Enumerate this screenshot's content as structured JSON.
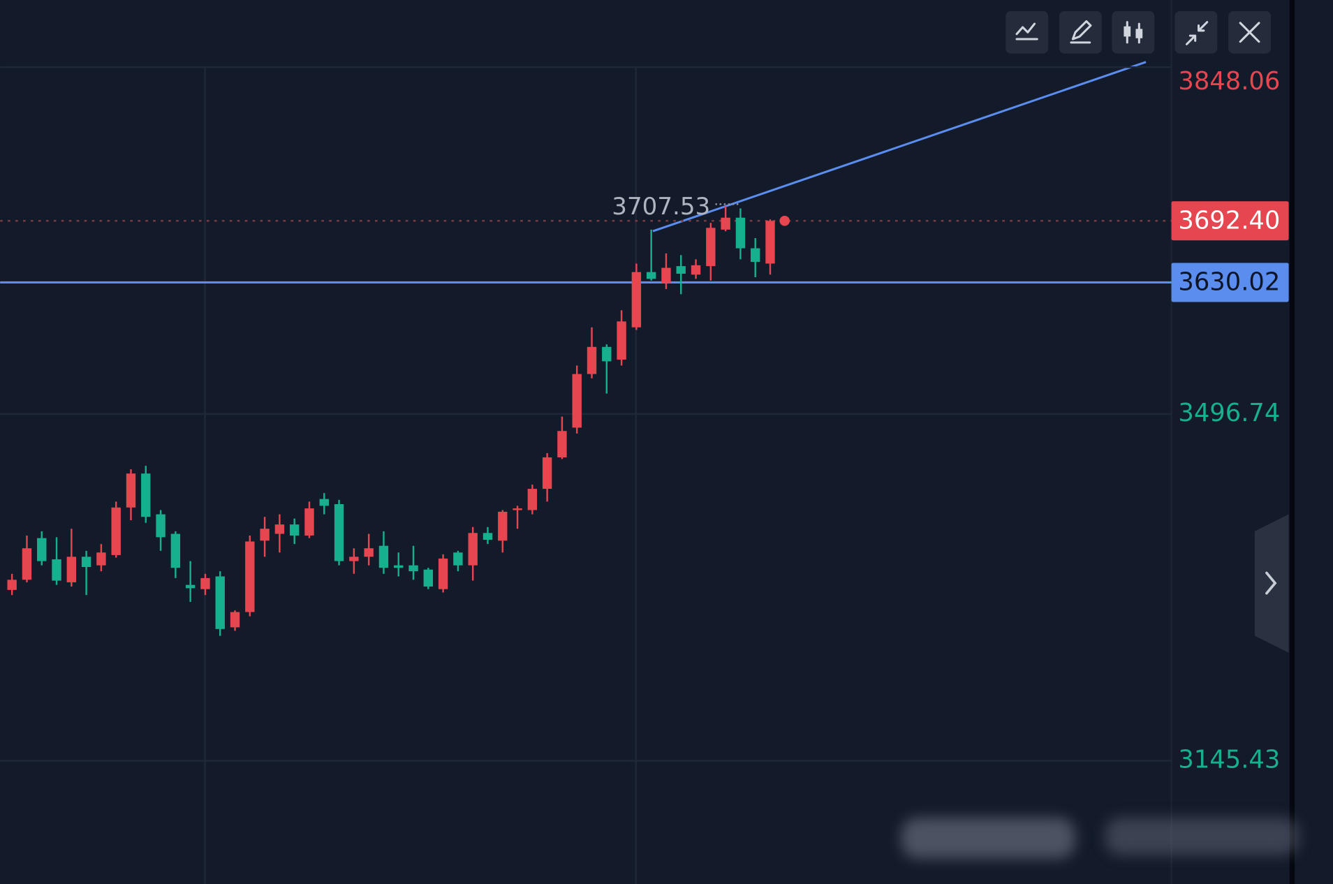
{
  "chart_data": {
    "type": "candlestick",
    "categories": [
      null,
      null,
      null,
      null,
      null,
      null,
      null,
      null,
      null,
      null,
      null,
      null,
      null,
      null,
      null,
      null,
      null,
      null,
      null,
      null,
      null,
      null,
      null,
      null,
      null,
      null,
      null,
      null,
      null,
      null,
      null,
      null,
      null,
      null,
      null,
      null,
      null,
      null,
      null,
      null,
      null,
      null,
      null,
      null,
      null,
      null,
      null,
      null,
      null,
      null,
      null,
      null
    ],
    "open": [
      3318.5,
      3328.8,
      3371.0,
      3349.5,
      3326.2,
      3352.1,
      3343.4,
      3353.8,
      3402.0,
      3436.4,
      3395.1,
      3375.3,
      3323.6,
      3319.3,
      3332.2,
      3280.6,
      3296.1,
      3368.4,
      3375.3,
      3384.8,
      3373.6,
      3410.6,
      3405.4,
      3347.7,
      3352.1,
      3363.2,
      3343.4,
      3343.4,
      3339.1,
      3319.3,
      3356.4,
      3343.4,
      3376.2,
      3368.4,
      3399.4,
      3399.4,
      3420.9,
      3452.8,
      3482.9,
      3537.2,
      3564.7,
      3551.8,
      3584.5,
      3640.5,
      3629.3,
      3646.5,
      3637.9,
      3646.5,
      3683.5,
      3695.6,
      3664.6,
      3649.1
    ],
    "high": [
      3334.8,
      3373.6,
      3377.9,
      3371.9,
      3380.5,
      3358.1,
      3365.0,
      3408.0,
      3440.7,
      3444.2,
      3399.4,
      3377.9,
      3347.7,
      3334.8,
      3337.4,
      3297.8,
      3373.6,
      3392.5,
      3395.1,
      3390.8,
      3408.0,
      3416.6,
      3409.7,
      3360.7,
      3375.3,
      3377.9,
      3356.4,
      3363.2,
      3340.9,
      3354.6,
      3358.1,
      3382.2,
      3382.2,
      3399.4,
      3403.7,
      3425.2,
      3457.1,
      3494.1,
      3545.8,
      3584.5,
      3567.3,
      3601.8,
      3649.1,
      3683.5,
      3659.4,
      3657.7,
      3653.4,
      3690.4,
      3707.53,
      3705.0,
      3674.9,
      3693.9
    ],
    "low": [
      3313.3,
      3326.2,
      3343.4,
      3323.6,
      3321.9,
      3313.3,
      3337.4,
      3351.2,
      3389.1,
      3386.5,
      3358.1,
      3330.5,
      3306.4,
      3313.3,
      3272.0,
      3277.1,
      3291.8,
      3352.1,
      3356.4,
      3365.0,
      3371.0,
      3395.1,
      3343.4,
      3334.8,
      3343.4,
      3334.8,
      3332.2,
      3328.8,
      3319.3,
      3315.9,
      3337.4,
      3327.9,
      3365.0,
      3356.4,
      3380.5,
      3395.1,
      3408.0,
      3451.1,
      3476.9,
      3532.9,
      3517.4,
      3545.8,
      3581.9,
      3631.9,
      3623.3,
      3618.1,
      3633.6,
      3631.9,
      3681.8,
      3653.4,
      3635.3,
      3637.9
    ],
    "close": [
      3328.8,
      3360.7,
      3347.7,
      3327.9,
      3352.1,
      3341.7,
      3356.4,
      3402.0,
      3436.4,
      3392.5,
      3371.9,
      3340.9,
      3320.2,
      3330.5,
      3278.9,
      3296.1,
      3367.6,
      3380.5,
      3384.8,
      3373.6,
      3401.1,
      3403.7,
      3347.7,
      3352.1,
      3360.7,
      3340.9,
      3340.9,
      3337.4,
      3321.9,
      3350.3,
      3343.4,
      3376.2,
      3369.3,
      3397.7,
      3401.1,
      3420.9,
      3452.8,
      3479.5,
      3537.2,
      3564.7,
      3550.1,
      3590.5,
      3640.5,
      3633.6,
      3644.8,
      3638.8,
      3647.4,
      3685.3,
      3695.6,
      3664.6,
      3650.8,
      3692.4
    ],
    "up_color": "#e5464f",
    "down_color": "#17b08f",
    "ylim": [
      3020.6,
      3916.1
    ],
    "yticks": [
      3145.43,
      3496.74,
      3848.06
    ],
    "ytick_colors": [
      "#17b08f",
      "#17b08f",
      "#e5464f"
    ],
    "grid": true,
    "last_price": {
      "value": 3692.4,
      "label": "3692.40",
      "color": "#e5464f"
    },
    "hline": {
      "value": 3630.02,
      "color": "#5b8def"
    },
    "annotations": [
      {
        "text": "3707.53"
      }
    ]
  }
}
